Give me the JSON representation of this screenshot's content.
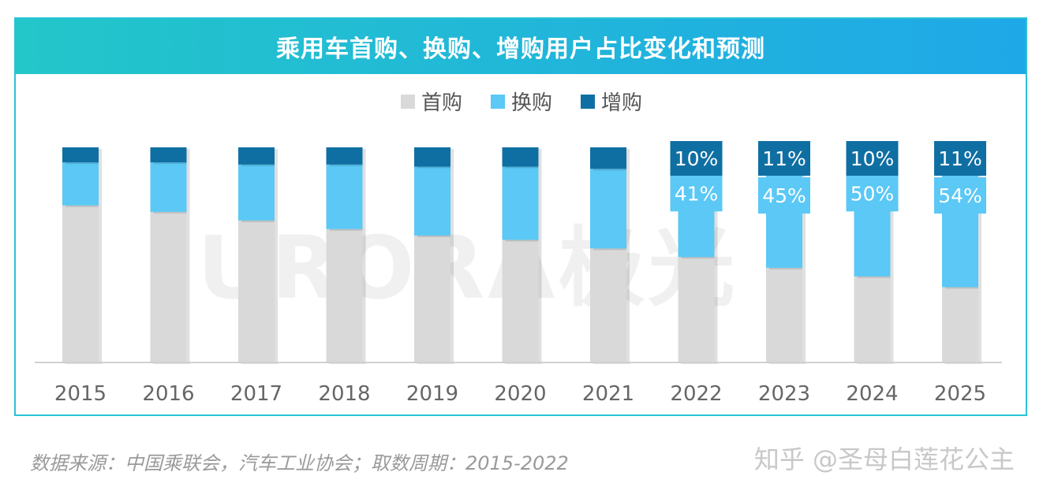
{
  "chart_data": {
    "type": "bar",
    "stacked": true,
    "title": "乘用车首购、换购、增购用户占比变化和预测",
    "categories": [
      "2015",
      "2016",
      "2017",
      "2018",
      "2019",
      "2020",
      "2021",
      "2022",
      "2023",
      "2024",
      "2025"
    ],
    "series": [
      {
        "name": "首购",
        "color": "#d9d9d9",
        "values": [
          73,
          70,
          66,
          62,
          59,
          57,
          53,
          49,
          44,
          40,
          35
        ]
      },
      {
        "name": "换购",
        "color": "#5bc8f5",
        "values": [
          20,
          23,
          26,
          30,
          32,
          34,
          37,
          41,
          45,
          50,
          54
        ]
      },
      {
        "name": "增购",
        "color": "#0f6fa3",
        "values": [
          7,
          7,
          8,
          8,
          9,
          9,
          10,
          10,
          11,
          10,
          11
        ]
      }
    ],
    "data_labels": {
      "2022": {
        "换购": "41%",
        "增购": "10%"
      },
      "2023": {
        "换购": "45%",
        "增购": "11%"
      },
      "2024": {
        "换购": "50%",
        "增购": "10%"
      },
      "2025": {
        "换购": "54%",
        "增购": "11%"
      }
    },
    "ylim": [
      0,
      100
    ],
    "legend_position": "top-center",
    "grid": false
  },
  "watermark": "URORA极光",
  "source": "数据来源：中国乘联会，汽车工业协会；取数周期：2015-2022",
  "credit": "知乎 @圣母白莲花公主"
}
